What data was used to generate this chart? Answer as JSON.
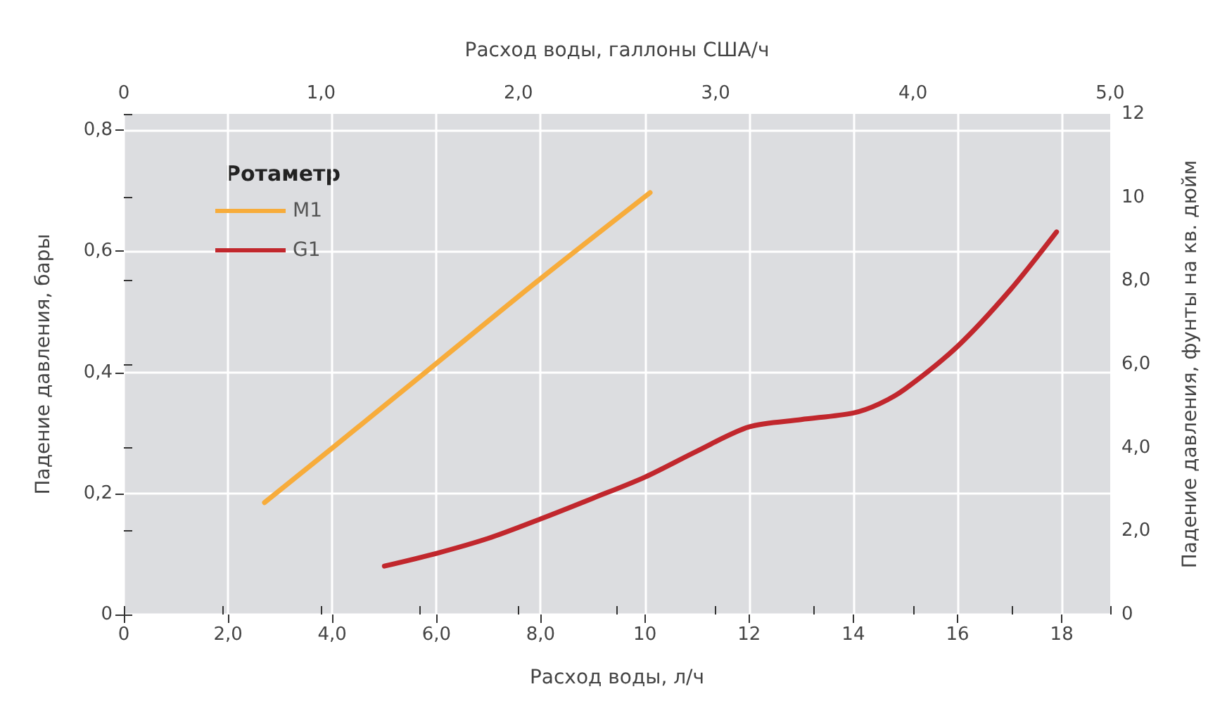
{
  "chart_data": {
    "type": "line",
    "xlabel": "Расход воды, л/ч",
    "ylabel": "Падение давления, бары",
    "y2label": "Падение давления, фунты на кв. дюйм",
    "x2label": "Расход воды, галлоны США/ч",
    "legend_title": "Ротаметр",
    "legend": "top left",
    "grid": true,
    "marker": "none",
    "line_style": "solid",
    "xlim": [
      0,
      18.93
    ],
    "xticks": [
      0,
      {
        "value": 2,
        "label": "2,0"
      },
      {
        "value": 4,
        "label": "4,0"
      },
      {
        "value": 6,
        "label": "6,0"
      },
      {
        "value": 8,
        "label": "8,0"
      },
      10,
      12,
      14,
      16,
      18
    ],
    "x2lim": [
      0,
      5
    ],
    "x2ticks": [
      0,
      {
        "value": 0.5,
        "label": null
      },
      {
        "value": 1,
        "label": "1,0"
      },
      {
        "value": 1.5,
        "label": null
      },
      {
        "value": 2,
        "label": "2,0"
      },
      {
        "value": 2.5,
        "label": null
      },
      {
        "value": 3,
        "label": "3,0"
      },
      {
        "value": 3.5,
        "label": null
      },
      {
        "value": 4,
        "label": "4,0"
      },
      {
        "value": 4.5,
        "label": null
      },
      {
        "value": 5,
        "label": "5,0"
      }
    ],
    "ylim": [
      0,
      0.827
    ],
    "yticks": [
      0,
      {
        "value": 0.2,
        "label": "0,2"
      },
      {
        "value": 0.4,
        "label": "0,4"
      },
      {
        "value": 0.6,
        "label": "0,6"
      },
      {
        "value": 0.8,
        "label": "0,8"
      }
    ],
    "y2lim": [
      0,
      12
    ],
    "y2ticks": [
      0,
      {
        "value": 2,
        "label": "2,0"
      },
      {
        "value": 4,
        "label": "4,0"
      },
      {
        "value": 6,
        "label": "6,0"
      },
      {
        "value": 8,
        "label": "8,0"
      },
      10,
      12
    ],
    "series": [
      {
        "name": "M1",
        "color": "#f7ac3b",
        "x": [
          2.7,
          4,
          6,
          8,
          10.1
        ],
        "values": [
          0.185,
          0.275,
          0.415,
          0.555,
          0.697
        ]
      },
      {
        "name": "G1",
        "color": "#c1272d",
        "x": [
          5,
          6,
          7,
          8,
          9,
          10,
          11,
          12,
          13,
          14,
          14.5,
          15,
          16,
          17,
          17.9
        ],
        "values": [
          0.08,
          0.101,
          0.126,
          0.158,
          0.192,
          0.227,
          0.27,
          0.31,
          0.322,
          0.333,
          0.348,
          0.373,
          0.443,
          0.535,
          0.632
        ]
      }
    ]
  }
}
